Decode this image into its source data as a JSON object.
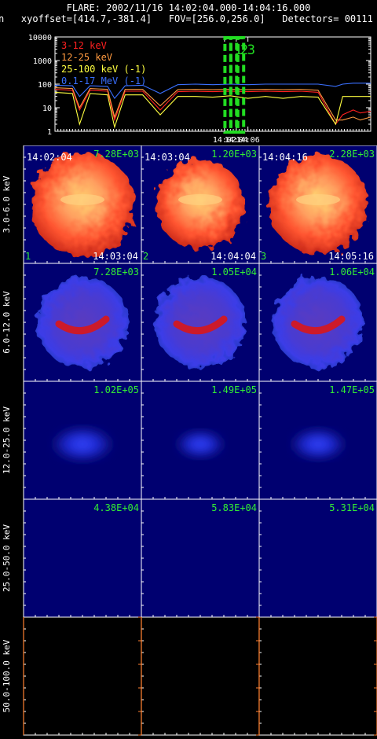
{
  "header": {
    "line1": "FLARE: 2002/11/16 14:02:04.000-14:04:16.000",
    "line2": "n   xyoffset=[414.7,-381.4]   FOV=[256.0,256.0]   Detectors= 00111"
  },
  "colors": {
    "bg": "#000000",
    "axis": "#ffffff",
    "interval_box": "#22dd22",
    "panel_number": "#33ee33",
    "series_3_12": "#ff2020",
    "series_12_25": "#ff9a40",
    "series_25_100": "#ffff40",
    "series_0_1_17": "#3a70ff"
  },
  "chart_data": {
    "type": "line",
    "y_scale": "log",
    "ylim": [
      1,
      10000
    ],
    "y_ticks": [
      "10000",
      "1000",
      "100",
      "10",
      "1"
    ],
    "x_range_minutes": [
      13.55,
      14.45
    ],
    "x_ticks": [
      "14:02",
      "14:04",
      "14:06"
    ],
    "intervals": [
      {
        "label": "1",
        "start": "14:02:04",
        "end": "14:03:04"
      },
      {
        "label": "2",
        "start": "14:03:04",
        "end": "14:04:04"
      },
      {
        "label": "3",
        "start": "14:04:16",
        "end": "14:05:16"
      }
    ],
    "series": [
      {
        "name": "3-12 keV",
        "color": "#ff2020",
        "x": [
          13.55,
          13.6,
          13.62,
          13.65,
          13.7,
          13.72,
          13.75,
          13.8,
          13.85,
          13.9,
          13.95,
          14.0,
          14.05,
          14.1,
          14.15,
          14.2,
          14.25,
          14.3,
          14.35,
          14.37,
          14.4,
          14.42,
          14.45
        ],
        "y": [
          60,
          55,
          8,
          55,
          50,
          3,
          50,
          50,
          8,
          48,
          50,
          48,
          50,
          48,
          50,
          48,
          50,
          45,
          2,
          5,
          8,
          6,
          7
        ]
      },
      {
        "name": "12-25 keV",
        "color": "#ff9a40",
        "x": [
          13.55,
          13.6,
          13.62,
          13.65,
          13.7,
          13.72,
          13.75,
          13.8,
          13.85,
          13.9,
          13.95,
          14.0,
          14.05,
          14.1,
          14.15,
          14.2,
          14.25,
          14.3,
          14.35,
          14.37,
          14.4,
          14.42,
          14.45
        ],
        "y": [
          70,
          65,
          10,
          65,
          60,
          4,
          60,
          60,
          12,
          58,
          60,
          58,
          60,
          58,
          60,
          58,
          60,
          55,
          3,
          3,
          4,
          3,
          4
        ]
      },
      {
        "name": "25-100 keV (-1)",
        "color": "#ffff40",
        "x": [
          13.55,
          13.6,
          13.62,
          13.65,
          13.7,
          13.72,
          13.75,
          13.8,
          13.85,
          13.9,
          13.95,
          14.0,
          14.05,
          14.1,
          14.15,
          14.2,
          14.25,
          14.3,
          14.35,
          14.37,
          14.4,
          14.42,
          14.45
        ],
        "y": [
          45,
          40,
          2,
          40,
          35,
          1.5,
          35,
          35,
          5,
          30,
          30,
          28,
          32,
          25,
          30,
          25,
          30,
          28,
          2,
          30,
          30,
          30,
          30
        ]
      },
      {
        "name": "0.1-17 MeV (-1)",
        "color": "#3a70ff",
        "x": [
          13.55,
          13.6,
          13.62,
          13.65,
          13.7,
          13.72,
          13.75,
          13.8,
          13.85,
          13.9,
          13.95,
          14.0,
          14.05,
          14.1,
          14.15,
          14.2,
          14.25,
          14.3,
          14.35,
          14.37,
          14.4,
          14.42,
          14.45
        ],
        "y": [
          90,
          85,
          30,
          85,
          80,
          25,
          85,
          90,
          40,
          95,
          100,
          95,
          100,
          95,
          100,
          100,
          100,
          100,
          80,
          100,
          110,
          110,
          110
        ]
      }
    ]
  },
  "legend": [
    {
      "label": "3-12 keV",
      "color": "#ff2020"
    },
    {
      "label": "12-25 keV",
      "color": "#ff9a40"
    },
    {
      "label": "25-100 keV (-1)",
      "color": "#ffff40"
    },
    {
      "label": "0.1-17 MeV (-1)",
      "color": "#3a70ff"
    }
  ],
  "image_grid": {
    "rows": [
      {
        "band": "3.0-6.0 keV",
        "scheme": "hot",
        "panels": [
          {
            "max": "7.28E+03",
            "start": "14:02:04",
            "end": "14:03:04",
            "idx": "1",
            "intensity": 1.0
          },
          {
            "max": "1.20E+03",
            "start": "14:03:04",
            "end": "14:04:04",
            "idx": "2",
            "intensity": 0.85
          },
          {
            "max": "2.28E+03",
            "start": "14:04:16",
            "end": "14:05:16",
            "idx": "3",
            "intensity": 0.95
          }
        ]
      },
      {
        "band": "6.0-12.0 keV",
        "scheme": "blue-red",
        "panels": [
          {
            "max": "7.28E+03",
            "intensity": 0.8
          },
          {
            "max": "1.05E+04",
            "intensity": 0.8
          },
          {
            "max": "1.06E+04",
            "intensity": 0.8
          }
        ]
      },
      {
        "band": "12.0-25.0 keV",
        "scheme": "blue",
        "panels": [
          {
            "max": "1.02E+05",
            "intensity": 0.7
          },
          {
            "max": "1.49E+05",
            "intensity": 0.5
          },
          {
            "max": "1.47E+05",
            "intensity": 0.6
          }
        ]
      },
      {
        "band": "25.0-50.0 keV",
        "scheme": "dark",
        "panels": [
          {
            "max": "4.38E+04",
            "intensity": 0
          },
          {
            "max": "5.83E+04",
            "intensity": 0
          },
          {
            "max": "5.31E+04",
            "intensity": 0
          }
        ]
      },
      {
        "band": "50.0-100.0 keV",
        "scheme": "empty",
        "panels": [
          {
            "max": ""
          },
          {
            "max": ""
          },
          {
            "max": ""
          }
        ]
      }
    ]
  }
}
